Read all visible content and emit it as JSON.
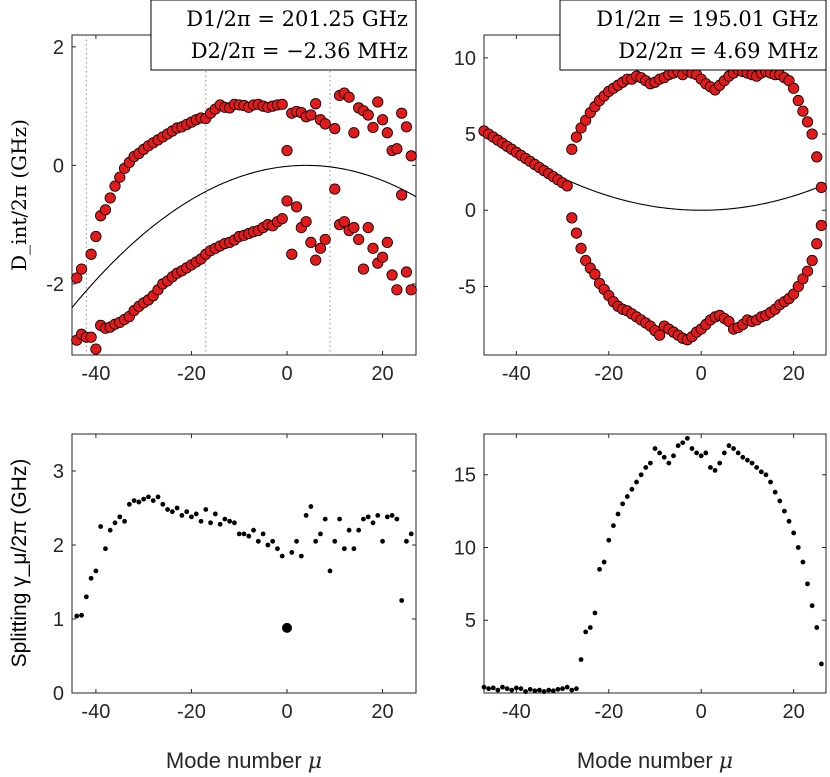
{
  "figure": {
    "x_axis_label": "Mode number",
    "x_axis_symbol": "μ",
    "left_top_ylabel": "D_int/2π (GHz)",
    "left_bottom_ylabel": "Splitting γ_μ/2π (GHz)"
  },
  "colors": {
    "marker_fill": "#e31a1c",
    "marker_edge": "#000000",
    "curve": "#000000",
    "axes": "#262626",
    "dotted": "#8c8c8c"
  },
  "chart_data": [
    {
      "id": "top-left",
      "type": "scatter",
      "xlim": [
        -45,
        27
      ],
      "ylim": [
        -3.2,
        2.2
      ],
      "xticks": [
        -40,
        -20,
        0,
        20
      ],
      "yticks": [
        -2,
        0,
        2
      ],
      "ylabel": "D_int/2π (GHz)",
      "annotation": [
        "D1/2π = 201.25 GHz",
        "D2/2π = −2.36 MHz"
      ],
      "vlines": [
        -42,
        -17,
        9
      ],
      "curve": {
        "name": "parabola",
        "vertex": [
          4,
          0
        ],
        "coef": -0.001
      },
      "series": [
        {
          "name": "upper branch",
          "x": [
            -44,
            -43,
            -41,
            -40,
            -39,
            -38,
            -37,
            -36,
            -35,
            -34,
            -33,
            -32,
            -31,
            -30,
            -29,
            -28,
            -27,
            -26,
            -25,
            -24,
            -23,
            -22,
            -21,
            -20,
            -19,
            -18,
            -17,
            -16,
            -15,
            -14,
            -13,
            -12,
            -11,
            -10,
            -9,
            -8,
            -7,
            -6,
            -5,
            -4,
            -3,
            -2,
            -1,
            0,
            1,
            2,
            3,
            4,
            5,
            6,
            7,
            8,
            10,
            11,
            12,
            13,
            14,
            15,
            16,
            17,
            18,
            19,
            20,
            21,
            22,
            23,
            24,
            25,
            26
          ],
          "y": [
            -1.9,
            -1.75,
            -1.5,
            -1.2,
            -0.85,
            -0.75,
            -0.55,
            -0.35,
            -0.2,
            -0.05,
            0.05,
            0.15,
            0.2,
            0.27,
            0.33,
            0.38,
            0.43,
            0.48,
            0.53,
            0.58,
            0.63,
            0.65,
            0.69,
            0.73,
            0.77,
            0.8,
            0.79,
            0.88,
            0.95,
            1.02,
            0.98,
            0.97,
            1.03,
            1.02,
            1.01,
            0.98,
            1.02,
            1.03,
            1.0,
            0.98,
            1.0,
            1.02,
            1.03,
            0.25,
            0.88,
            0.91,
            0.89,
            0.82,
            0.85,
            1.04,
            0.77,
            0.7,
            0.62,
            1.18,
            1.22,
            1.15,
            0.55,
            0.97,
            0.92,
            0.85,
            0.64,
            1.07,
            0.77,
            0.55,
            0.25,
            0.28,
            0.88,
            0.65,
            0.16
          ]
        },
        {
          "name": "lower branch",
          "x": [
            -44,
            -43,
            -42,
            -41,
            -40,
            -39,
            -38,
            -37,
            -36,
            -35,
            -34,
            -33,
            -32,
            -31,
            -30,
            -29,
            -28,
            -27,
            -26,
            -25,
            -24,
            -23,
            -22,
            -21,
            -20,
            -19,
            -18,
            -17,
            -16,
            -15,
            -14,
            -13,
            -12,
            -11,
            -10,
            -9,
            -8,
            -7,
            -6,
            -5,
            -4,
            -3,
            -2,
            -1,
            0,
            1,
            2,
            3,
            4,
            5,
            6,
            7,
            8,
            10,
            11,
            12,
            13,
            14,
            15,
            16,
            17,
            18,
            19,
            20,
            21,
            22,
            23,
            24,
            25,
            26
          ],
          "y": [
            -2.95,
            -2.85,
            -2.9,
            -2.9,
            -3.1,
            -2.7,
            -2.75,
            -2.73,
            -2.68,
            -2.65,
            -2.6,
            -2.55,
            -2.45,
            -2.38,
            -2.32,
            -2.27,
            -2.2,
            -2.1,
            -2.0,
            -1.95,
            -1.88,
            -1.82,
            -1.78,
            -1.73,
            -1.68,
            -1.63,
            -1.58,
            -1.5,
            -1.44,
            -1.4,
            -1.36,
            -1.32,
            -1.3,
            -1.26,
            -1.2,
            -1.18,
            -1.15,
            -1.12,
            -1.1,
            -1.05,
            -1.0,
            -1.02,
            -0.95,
            -0.9,
            -0.6,
            -1.5,
            -0.7,
            -1.05,
            -0.95,
            -1.3,
            -1.6,
            -1.4,
            -1.25,
            -0.4,
            -1.0,
            -0.95,
            -1.1,
            -1.05,
            -1.25,
            -1.75,
            -1.05,
            -1.4,
            -1.65,
            -1.55,
            -1.3,
            -1.85,
            -2.1,
            -0.5,
            -1.8,
            -2.1
          ]
        }
      ]
    },
    {
      "id": "top-right",
      "type": "scatter",
      "xlim": [
        -47,
        27
      ],
      "ylim": [
        -9.5,
        11.5
      ],
      "xticks": [
        -40,
        -20,
        0,
        20
      ],
      "yticks": [
        -5,
        0,
        5,
        10
      ],
      "annotation": [
        "D1/2π = 195.01 GHz",
        "D2/2π = 4.69 MHz"
      ],
      "curve": {
        "name": "parabola",
        "vertex": [
          0,
          0
        ],
        "coef": 0.00235
      },
      "series": [
        {
          "name": "upper branch",
          "x": [
            -47,
            -46,
            -45,
            -44,
            -43,
            -42,
            -41,
            -40,
            -39,
            -38,
            -37,
            -36,
            -35,
            -34,
            -33,
            -32,
            -31,
            -30,
            -29,
            -28,
            -27,
            -26,
            -25,
            -24,
            -23,
            -22,
            -21,
            -20,
            -19,
            -18,
            -17,
            -16,
            -15,
            -14,
            -13,
            -12,
            -11,
            -10,
            -9,
            -8,
            -7,
            -6,
            -5,
            -4,
            -3,
            -2,
            -1,
            0,
            1,
            2,
            3,
            4,
            5,
            6,
            7,
            8,
            9,
            10,
            11,
            12,
            13,
            14,
            15,
            16,
            17,
            18,
            19,
            20,
            21,
            22,
            23,
            24,
            25,
            26
          ],
          "y": [
            5.2,
            5.0,
            4.8,
            4.6,
            4.4,
            4.2,
            4.0,
            3.8,
            3.6,
            3.4,
            3.2,
            3.0,
            2.8,
            2.6,
            2.4,
            2.2,
            2.0,
            1.8,
            1.6,
            4.0,
            4.8,
            5.4,
            5.9,
            6.4,
            6.8,
            7.2,
            7.5,
            7.8,
            8.0,
            8.2,
            8.4,
            8.6,
            8.6,
            8.8,
            8.7,
            8.5,
            8.3,
            8.4,
            8.6,
            8.7,
            8.9,
            9.0,
            9.1,
            8.9,
            9.2,
            9.0,
            8.9,
            8.6,
            8.3,
            8.1,
            7.9,
            8.2,
            8.5,
            8.8,
            9.0,
            9.2,
            9.1,
            9.0,
            8.9,
            8.8,
            9.0,
            9.1,
            9.0,
            8.9,
            8.9,
            8.7,
            8.5,
            8.0,
            7.2,
            6.5,
            5.8,
            5.0,
            3.5,
            1.5
          ]
        },
        {
          "name": "lower branch",
          "x": [
            -28,
            -27,
            -26,
            -25,
            -24,
            -23,
            -22,
            -21,
            -20,
            -19,
            -18,
            -17,
            -16,
            -15,
            -14,
            -13,
            -12,
            -11,
            -10,
            -9,
            -8,
            -7,
            -6,
            -5,
            -4,
            -3,
            -2,
            -1,
            0,
            1,
            2,
            3,
            4,
            5,
            6,
            7,
            8,
            9,
            10,
            11,
            12,
            13,
            14,
            15,
            16,
            17,
            18,
            19,
            20,
            21,
            22,
            23,
            24,
            25,
            26
          ],
          "y": [
            -0.5,
            -1.5,
            -2.5,
            -3.3,
            -3.8,
            -4.2,
            -4.8,
            -5.2,
            -5.6,
            -6.0,
            -6.3,
            -6.5,
            -6.6,
            -6.8,
            -7.0,
            -7.2,
            -7.4,
            -7.6,
            -7.9,
            -8.2,
            -7.6,
            -7.8,
            -8.0,
            -8.2,
            -8.4,
            -8.5,
            -8.3,
            -8.0,
            -7.8,
            -7.5,
            -7.2,
            -7.0,
            -6.9,
            -7.1,
            -7.3,
            -7.8,
            -7.7,
            -7.5,
            -7.2,
            -7.3,
            -7.2,
            -7.0,
            -6.9,
            -6.7,
            -6.5,
            -6.2,
            -6.0,
            -5.8,
            -5.5,
            -5.0,
            -4.5,
            -4.0,
            -3.3,
            -2.2,
            -1.0
          ]
        }
      ]
    },
    {
      "id": "bottom-left",
      "type": "scatter",
      "xlim": [
        -45,
        27
      ],
      "ylim": [
        0,
        3.5
      ],
      "xticks": [
        -40,
        -20,
        0,
        20
      ],
      "yticks": [
        0,
        1,
        2,
        3
      ],
      "xlabel": "Mode number μ",
      "ylabel": "Splitting γ_μ/2π (GHz)",
      "series": [
        {
          "name": "splitting",
          "x": [
            -44,
            -43,
            -42,
            -41,
            -40,
            -39,
            -38,
            -37,
            -36,
            -35,
            -34,
            -33,
            -32,
            -31,
            -30,
            -29,
            -28,
            -27,
            -26,
            -25,
            -24,
            -23,
            -22,
            -21,
            -20,
            -19,
            -18,
            -17,
            -16,
            -15,
            -14,
            -13,
            -12,
            -11,
            -10,
            -9,
            -8,
            -7,
            -6,
            -5,
            -4,
            -3,
            -2,
            -1,
            1,
            2,
            3,
            4,
            5,
            6,
            7,
            8,
            9,
            10,
            11,
            12,
            13,
            14,
            15,
            16,
            17,
            18,
            19,
            20,
            21,
            22,
            23,
            24,
            25,
            26
          ],
          "y": [
            1.04,
            1.05,
            1.3,
            1.55,
            1.65,
            2.25,
            1.95,
            2.2,
            2.3,
            2.38,
            2.32,
            2.55,
            2.6,
            2.58,
            2.62,
            2.65,
            2.6,
            2.65,
            2.55,
            2.48,
            2.45,
            2.5,
            2.4,
            2.45,
            2.38,
            2.42,
            2.32,
            2.48,
            2.3,
            2.42,
            2.28,
            2.35,
            2.32,
            2.3,
            2.15,
            2.15,
            2.12,
            2.2,
            2.05,
            2.15,
            2.0,
            2.05,
            1.95,
            1.85,
            1.9,
            2.05,
            1.85,
            2.4,
            2.52,
            2.05,
            2.15,
            2.35,
            1.65,
            2.05,
            2.35,
            1.95,
            2.2,
            1.95,
            2.2,
            2.35,
            2.38,
            2.3,
            2.4,
            2.05,
            2.38,
            2.4,
            2.35,
            1.25,
            2.05,
            2.15
          ]
        },
        {
          "name": "highlighted point",
          "x": [
            0
          ],
          "y": [
            0.88
          ]
        }
      ]
    },
    {
      "id": "bottom-right",
      "type": "scatter",
      "xlim": [
        -47,
        27
      ],
      "ylim": [
        0,
        17.8
      ],
      "xticks": [
        -40,
        -20,
        0,
        20
      ],
      "yticks": [
        5,
        10,
        15
      ],
      "xlabel": "Mode number μ",
      "series": [
        {
          "name": "splitting",
          "x": [
            -47,
            -46,
            -45,
            -44,
            -43,
            -42,
            -41,
            -40,
            -39,
            -38,
            -37,
            -36,
            -35,
            -34,
            -33,
            -32,
            -31,
            -30,
            -29,
            -28,
            -27,
            -26,
            -25,
            -24,
            -23,
            -22,
            -21,
            -20,
            -19,
            -18,
            -17,
            -16,
            -15,
            -14,
            -13,
            -12,
            -11,
            -10,
            -9,
            -8,
            -7,
            -6,
            -5,
            -4,
            -3,
            -2,
            -1,
            0,
            1,
            2,
            3,
            4,
            5,
            6,
            7,
            8,
            9,
            10,
            11,
            12,
            13,
            14,
            15,
            16,
            17,
            18,
            19,
            20,
            21,
            22,
            23,
            24,
            25,
            26
          ],
          "y": [
            0.4,
            0.3,
            0.35,
            0.2,
            0.4,
            0.3,
            0.2,
            0.35,
            0.3,
            0.1,
            0.25,
            0.15,
            0.2,
            0.1,
            0.2,
            0.15,
            0.25,
            0.3,
            0.4,
            0.2,
            0.3,
            2.3,
            4.2,
            4.5,
            5.5,
            8.5,
            9.0,
            10.5,
            11.5,
            12.3,
            13.0,
            13.5,
            14.0,
            14.5,
            15.0,
            15.5,
            15.8,
            16.8,
            16.5,
            16.2,
            15.8,
            16.3,
            17.0,
            17.2,
            17.5,
            16.8,
            16.5,
            16.3,
            16.5,
            15.5,
            15.3,
            15.8,
            16.5,
            17.0,
            16.8,
            16.5,
            16.2,
            16.0,
            15.8,
            15.5,
            15.2,
            15.0,
            14.5,
            13.8,
            13.2,
            12.5,
            11.8,
            11.0,
            10.0,
            9.0,
            7.5,
            6.0,
            4.5,
            2.0
          ]
        }
      ]
    }
  ]
}
